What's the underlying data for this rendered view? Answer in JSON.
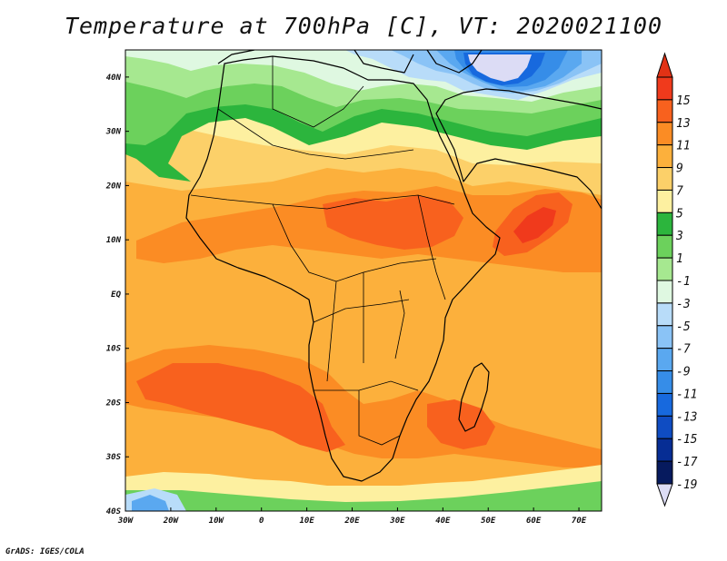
{
  "title": "Temperature at 700hPa [C], VT: 2020021100",
  "credit": "GrADS: IGES/COLA",
  "map": {
    "lon_range": [
      -30,
      75
    ],
    "lat_range": [
      -40,
      45
    ],
    "lon_ticks": [
      {
        "value": -30,
        "label": "30W"
      },
      {
        "value": -20,
        "label": "20W"
      },
      {
        "value": -10,
        "label": "10W"
      },
      {
        "value": 0,
        "label": "0"
      },
      {
        "value": 10,
        "label": "10E"
      },
      {
        "value": 20,
        "label": "20E"
      },
      {
        "value": 30,
        "label": "30E"
      },
      {
        "value": 40,
        "label": "40E"
      },
      {
        "value": 50,
        "label": "50E"
      },
      {
        "value": 60,
        "label": "60E"
      },
      {
        "value": 70,
        "label": "70E"
      }
    ],
    "lat_ticks": [
      {
        "value": 40,
        "label": "40N"
      },
      {
        "value": 30,
        "label": "30N"
      },
      {
        "value": 20,
        "label": "20N"
      },
      {
        "value": 10,
        "label": "10N"
      },
      {
        "value": 0,
        "label": "EQ"
      },
      {
        "value": -10,
        "label": "10S"
      },
      {
        "value": -20,
        "label": "20S"
      },
      {
        "value": -30,
        "label": "30S"
      },
      {
        "value": -40,
        "label": "40S"
      }
    ],
    "background_color": "#fcb03c"
  },
  "colorbar": {
    "levels": [
      "15",
      "13",
      "11",
      "9",
      "7",
      "5",
      "3",
      "1",
      "-1",
      "-3",
      "-5",
      "-7",
      "-9",
      "-11",
      "-13",
      "-15",
      "-17",
      "-19"
    ],
    "colors": [
      "#f03a1c",
      "#f8611e",
      "#fb8c24",
      "#fcb03c",
      "#fcd069",
      "#fdf0a0",
      "#2cb53d",
      "#6cd15c",
      "#a6e890",
      "#dff8e1",
      "#b8dcf9",
      "#8ac3f6",
      "#5aa8f0",
      "#368de8",
      "#1769de",
      "#0f4cc2",
      "#062d94",
      "#061a5e"
    ],
    "top_color": "#e23215",
    "bottom_color": "#dcdcf5"
  }
}
